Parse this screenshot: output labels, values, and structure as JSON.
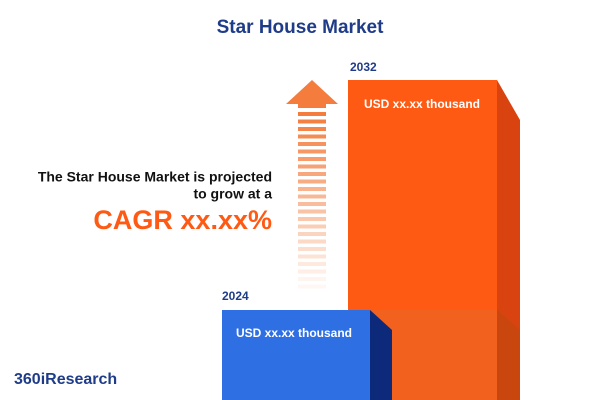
{
  "header": {
    "title": "Star House Market"
  },
  "projection": {
    "line1": "The Star House Market is projected",
    "line2": "to grow at a",
    "cagr": "CAGR xx.xx%"
  },
  "bars": [
    {
      "year": "2024",
      "label": "USD xx.xx thousand"
    },
    {
      "year": "2032",
      "label": "USD xx.xx thousand"
    }
  ],
  "brand": "360iResearch"
}
